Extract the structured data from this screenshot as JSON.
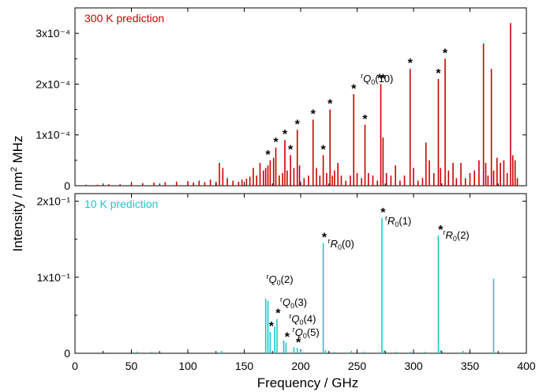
{
  "chart_data": {
    "type": "line",
    "xlabel": "Frequency / GHz",
    "ylabel": "Intensity / nm² MHz",
    "xlim": [
      0,
      400
    ],
    "x_ticks": [
      0,
      50,
      100,
      150,
      200,
      250,
      300,
      350,
      400
    ],
    "x_tick_labels": [
      "0",
      "50",
      "100",
      "150",
      "200",
      "250",
      "300",
      "350",
      "400"
    ],
    "panels": [
      {
        "name": "top",
        "title": "300 K prediction",
        "color": "#cc0000",
        "ylim": [
          0,
          0.00035
        ],
        "y_ticks": [
          0,
          0.0001,
          0.0002,
          0.0003
        ],
        "y_tick_labels": [
          "0",
          "1x10⁻⁴",
          "2x10⁻⁴",
          "3x10⁻⁴"
        ],
        "lines": [
          [
            10,
            2e-06
          ],
          [
            20,
            2e-06
          ],
          [
            30,
            3e-06
          ],
          [
            40,
            3e-06
          ],
          [
            50,
            4e-06
          ],
          [
            60,
            5e-06
          ],
          [
            70,
            6e-06
          ],
          [
            80,
            7e-06
          ],
          [
            90,
            8e-06
          ],
          [
            100,
            9e-06
          ],
          [
            105,
            6e-06
          ],
          [
            110,
            1e-05
          ],
          [
            115,
            7e-06
          ],
          [
            120,
            1.2e-05
          ],
          [
            125,
            8e-06
          ],
          [
            128,
            4.5e-05
          ],
          [
            131,
            3.5e-05
          ],
          [
            135,
            1.5e-05
          ],
          [
            140,
            1e-05
          ],
          [
            145,
            8e-06
          ],
          [
            148,
            1.2e-05
          ],
          [
            152,
            1.4e-05
          ],
          [
            155,
            1.8e-05
          ],
          [
            158,
            3.5e-05
          ],
          [
            161,
            2e-05
          ],
          [
            164,
            4.5e-05
          ],
          [
            167,
            3e-05
          ],
          [
            169,
            3.5e-05
          ],
          [
            171,
            4e-05
          ],
          [
            173,
            5e-05
          ],
          [
            176,
            5.5e-05
          ],
          [
            178,
            7.5e-05
          ],
          [
            181,
            2e-05
          ],
          [
            184,
            2.5e-05
          ],
          [
            186,
            9e-05
          ],
          [
            188,
            3e-05
          ],
          [
            191,
            6e-05
          ],
          [
            194,
            3.5e-05
          ],
          [
            197,
            0.00011
          ],
          [
            199,
            4e-05
          ],
          [
            203,
            1.5e-05
          ],
          [
            207,
            2e-05
          ],
          [
            211,
            0.00013
          ],
          [
            214,
            3.5e-05
          ],
          [
            217,
            2e-05
          ],
          [
            220,
            6e-05
          ],
          [
            223,
            2.5e-05
          ],
          [
            226,
            0.00015
          ],
          [
            228,
            2e-05
          ],
          [
            230,
            3e-05
          ],
          [
            233,
            4.5e-05
          ],
          [
            236,
            2e-05
          ],
          [
            240,
            1e-05
          ],
          [
            244,
            2e-05
          ],
          [
            247,
            0.00018
          ],
          [
            250,
            2.5e-05
          ],
          [
            254,
            1.5e-05
          ],
          [
            257,
            0.00012
          ],
          [
            260,
            2.5e-05
          ],
          [
            264,
            2e-05
          ],
          [
            268,
            1e-05
          ],
          [
            271,
            0.0002
          ],
          [
            273,
            9.5e-05
          ],
          [
            276,
            2.5e-05
          ],
          [
            280,
            2e-05
          ],
          [
            284,
            4e-05
          ],
          [
            288,
            1e-05
          ],
          [
            292,
            2e-05
          ],
          [
            297,
            0.00023
          ],
          [
            300,
            3.5e-05
          ],
          [
            304,
            1e-05
          ],
          [
            308,
            1.5e-05
          ],
          [
            311,
            8.5e-05
          ],
          [
            314,
            5e-05
          ],
          [
            318,
            2.5e-05
          ],
          [
            322,
            0.00021
          ],
          [
            324,
            3.5e-05
          ],
          [
            328,
            0.00025
          ],
          [
            331,
            3e-05
          ],
          [
            335,
            4.5e-05
          ],
          [
            338,
            1.5e-05
          ],
          [
            342,
            4.5e-05
          ],
          [
            346,
            1.5e-05
          ],
          [
            350,
            2.5e-05
          ],
          [
            354,
            3e-05
          ],
          [
            358,
            5e-05
          ],
          [
            362,
            0.00028
          ],
          [
            364,
            4.5e-05
          ],
          [
            366,
            2e-05
          ],
          [
            369,
            0.00023
          ],
          [
            371,
            3e-05
          ],
          [
            374,
            5.5e-05
          ],
          [
            377,
            4.5e-05
          ],
          [
            380,
            5e-05
          ],
          [
            383,
            2.5e-05
          ],
          [
            386,
            0.00032
          ],
          [
            388,
            6e-05
          ],
          [
            390,
            5e-05
          ],
          [
            392,
            1.5e-05
          ]
        ],
        "stars": [
          171,
          178,
          186,
          191,
          197,
          211,
          220,
          226,
          247,
          257,
          270,
          273,
          297,
          322,
          328
        ],
        "annotations": [
          {
            "branch": "Q",
            "pre": "r",
            "sub": "0",
            "arg": "(10)",
            "x": 270
          }
        ]
      },
      {
        "name": "bottom",
        "title": "10 K prediction",
        "color": "#1ec8c8",
        "ylim": [
          0,
          0.21
        ],
        "y_ticks": [
          0,
          0.1,
          0.2
        ],
        "y_tick_labels": [
          "0",
          "1x10⁻¹",
          "2x10⁻¹"
        ],
        "lines": [
          [
            55,
            0.002
          ],
          [
            68,
            0.002
          ],
          [
            130,
            0.003
          ],
          [
            169,
            0.072
          ],
          [
            171,
            0.069
          ],
          [
            173,
            0.028
          ],
          [
            177,
            0.035
          ],
          [
            179,
            0.045
          ],
          [
            185,
            0.017
          ],
          [
            187,
            0.014
          ],
          [
            194,
            0.008
          ],
          [
            197,
            0.007
          ],
          [
            200,
            0.003
          ],
          [
            220,
            0.145
          ],
          [
            222,
            0.004
          ],
          [
            230,
            0.002
          ],
          [
            245,
            0.003
          ],
          [
            256,
            0.002
          ],
          [
            272,
            0.178
          ],
          [
            274,
            0.004
          ],
          [
            285,
            0.002
          ],
          [
            297,
            0.002
          ],
          [
            310,
            0.002
          ],
          [
            322,
            0.155
          ],
          [
            324,
            0.004
          ],
          [
            344,
            0.003
          ],
          [
            371,
            0.098
          ]
        ],
        "stars": [
          174,
          180,
          188,
          198,
          221,
          273,
          324
        ],
        "annotations": [
          {
            "pre": "r",
            "branch": "Q",
            "sub": "0",
            "arg": "(2)",
            "x": 171
          },
          {
            "pre": "r",
            "branch": "Q",
            "sub": "0",
            "arg": "(3)",
            "x": 179
          },
          {
            "pre": "r",
            "branch": "Q",
            "sub": "0",
            "arg": "(4)",
            "x": 187
          },
          {
            "pre": "r",
            "branch": "Q",
            "sub": "0",
            "arg": "(5)",
            "x": 197
          },
          {
            "pre": "r",
            "branch": "R",
            "sub": "0",
            "arg": "(0)",
            "x": 220
          },
          {
            "pre": "r",
            "branch": "R",
            "sub": "0",
            "arg": "(1)",
            "x": 272
          },
          {
            "pre": "r",
            "branch": "R",
            "sub": "0",
            "arg": "(2)",
            "x": 322
          }
        ]
      }
    ]
  }
}
